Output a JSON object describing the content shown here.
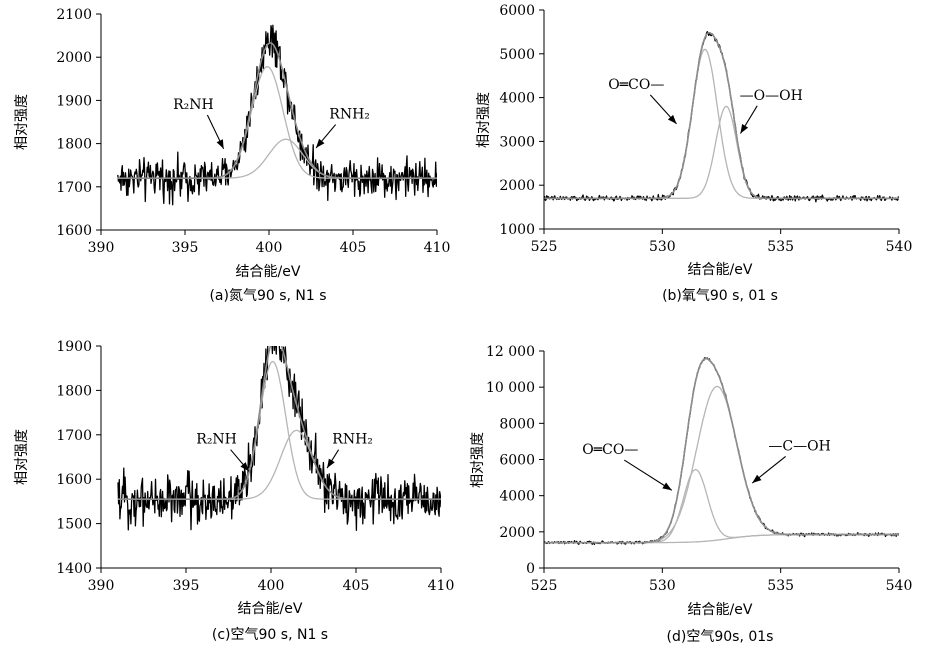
{
  "chart_data": [
    {
      "id": "a",
      "type": "line",
      "caption": "(a)氮气90 s, N1 s",
      "xlabel": "结合能/eV",
      "ylabel": "相对强度",
      "xlim": [
        390,
        410
      ],
      "ylim": [
        1600,
        2100
      ],
      "xticks": [
        390,
        395,
        400,
        405,
        410
      ],
      "yticks": [
        1600,
        1700,
        1800,
        1900,
        2000,
        2100
      ],
      "ytick_labels": [
        "1600",
        "1700",
        "1800",
        "1900",
        "2000",
        "2100"
      ],
      "raw": {
        "range": [
          391,
          410
        ],
        "noise": 22,
        "peak_extra": 40,
        "peak_x": 400.1
      },
      "baseline": 1720,
      "peaks": [
        {
          "name": "R₂NH",
          "center": 399.9,
          "height": 258,
          "fwhm": 2.2
        },
        {
          "name": "RNH₂",
          "center": 401.0,
          "height": 90,
          "fwhm": 2.4
        }
      ],
      "annotations": [
        {
          "text": "R₂NH",
          "x": 395.5,
          "y": 1880,
          "arrow_to": [
            397.3,
            1788
          ]
        },
        {
          "text": "RNH₂",
          "x": 404.8,
          "y": 1858,
          "arrow_to": [
            402.8,
            1790
          ]
        }
      ]
    },
    {
      "id": "b",
      "type": "line",
      "caption": "(b)氧气90 s, 01 s",
      "xlabel": "结合能/eV",
      "ylabel": "相对强度",
      "xlim": [
        525,
        540
      ],
      "ylim": [
        1000,
        6000
      ],
      "xticks": [
        525,
        530,
        535,
        540
      ],
      "yticks": [
        1000,
        2000,
        3000,
        4000,
        5000,
        6000
      ],
      "ytick_labels": [
        "1000",
        "2000",
        "3000",
        "4000",
        "5000",
        "6000"
      ],
      "raw": {
        "range": [
          525,
          540
        ],
        "noise": 30,
        "peak_extra": 0,
        "peak_x": 531.9
      },
      "baseline": 1700,
      "peaks": [
        {
          "name": "O=CO—",
          "center": 531.8,
          "height": 3400,
          "fwhm": 1.25
        },
        {
          "name": "—O—OH",
          "center": 532.7,
          "height": 2100,
          "fwhm": 1.05
        }
      ],
      "annotations": [
        {
          "text": "O═CO—",
          "x": 528.9,
          "y": 4200,
          "arrow_to": [
            530.6,
            3400
          ]
        },
        {
          "text": "—O—OH",
          "x": 534.6,
          "y": 3950,
          "arrow_to": [
            533.3,
            3180
          ]
        }
      ]
    },
    {
      "id": "c",
      "type": "line",
      "caption": "(c)空气90 s, N1 s",
      "xlabel": "结合能/eV",
      "ylabel": "相对强度",
      "xlim": [
        390,
        410
      ],
      "ylim": [
        1400,
        1900
      ],
      "xticks": [
        390,
        395,
        400,
        405,
        410
      ],
      "yticks": [
        1400,
        1500,
        1600,
        1700,
        1800,
        1900
      ],
      "ytick_labels": [
        "1400",
        "1500",
        "1600",
        "1700",
        "1800",
        "1900"
      ],
      "raw": {
        "range": [
          391,
          410
        ],
        "noise": 28,
        "peak_extra": 45,
        "peak_x": 400.1
      },
      "baseline": 1555,
      "peaks": [
        {
          "name": "R₂NH",
          "center": 400.1,
          "height": 310,
          "fwhm": 1.8
        },
        {
          "name": "RNH₂",
          "center": 401.5,
          "height": 155,
          "fwhm": 2.2
        }
      ],
      "annotations": [
        {
          "text": "R₂NH",
          "x": 396.8,
          "y": 1680,
          "arrow_to": [
            398.7,
            1618
          ]
        },
        {
          "text": "RNH₂",
          "x": 404.8,
          "y": 1680,
          "arrow_to": [
            403.3,
            1625
          ]
        }
      ]
    },
    {
      "id": "d",
      "type": "line",
      "caption": "(d)空气90s, 01s",
      "xlabel": "结合能/eV",
      "ylabel": "相对强度",
      "xlim": [
        525,
        540
      ],
      "ylim": [
        0,
        12000
      ],
      "xticks": [
        525,
        530,
        535,
        540
      ],
      "yticks": [
        0,
        2000,
        4000,
        6000,
        8000,
        10000,
        12000
      ],
      "ytick_labels": [
        "0",
        "2000",
        "4000",
        "6000",
        "8000",
        "10 000",
        "12 000"
      ],
      "raw": {
        "range": [
          525,
          540
        ],
        "noise": 40,
        "peak_extra": 0,
        "peak_x": 532.2
      },
      "baseline": 1400,
      "sloped_background": [
        1400,
        1850
      ],
      "peaks": [
        {
          "name": "O=CO—",
          "center": 531.4,
          "height": 4000,
          "fwhm": 1.2
        },
        {
          "name": "—C—OH",
          "center": 532.3,
          "height": 8500,
          "fwhm": 2.0
        }
      ],
      "annotations": [
        {
          "text": "O═CO—",
          "x": 527.8,
          "y": 6300,
          "arrow_to": [
            530.4,
            4300
          ]
        },
        {
          "text": "—C—OH",
          "x": 535.8,
          "y": 6500,
          "arrow_to": [
            533.8,
            4700
          ]
        }
      ]
    }
  ]
}
